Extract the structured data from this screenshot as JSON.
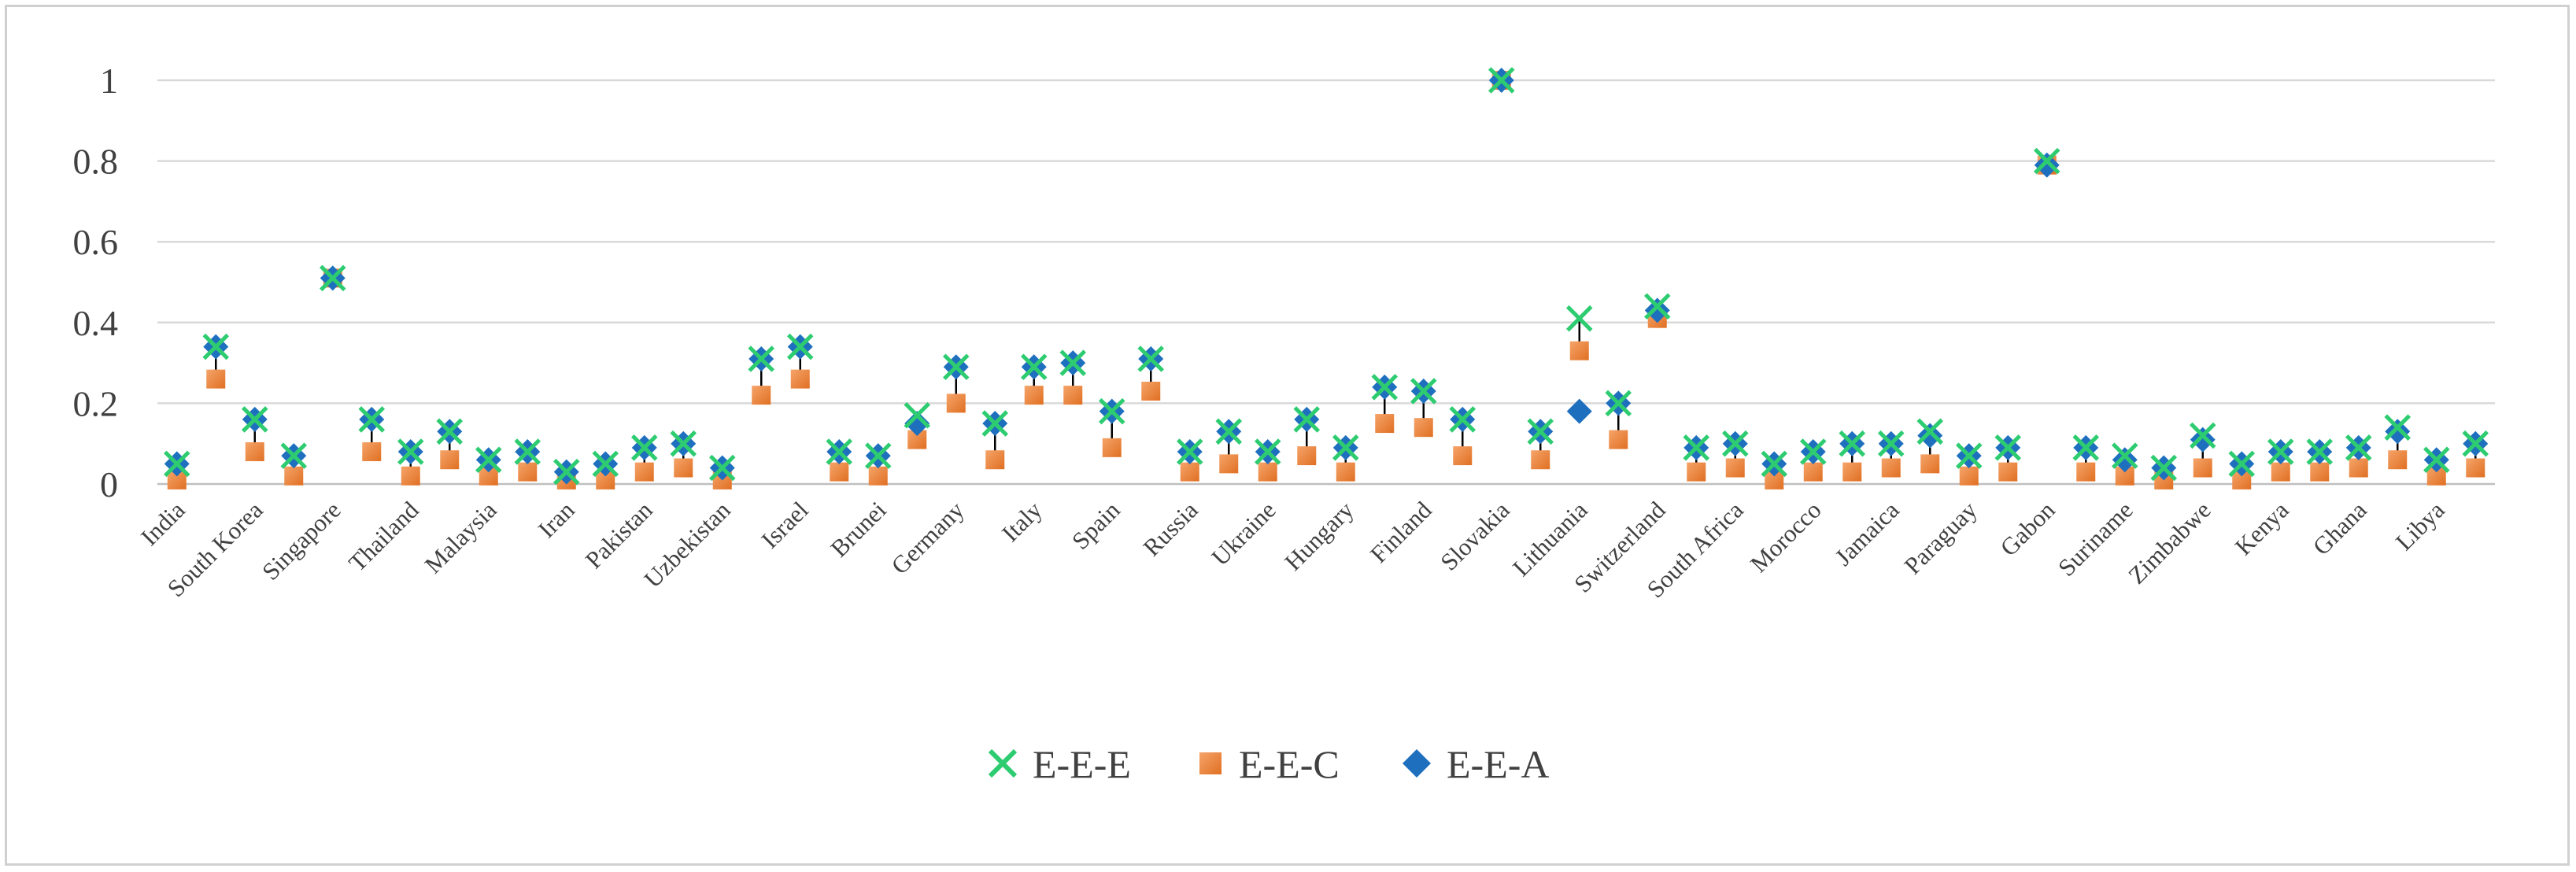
{
  "chart_data": {
    "type": "scatter",
    "title": "",
    "xlabel": "",
    "ylabel": "",
    "ylim": [
      0,
      1
    ],
    "yticks": [
      "0",
      "0.2",
      "0.4",
      "0.6",
      "0.8",
      "1"
    ],
    "grid": true,
    "legend_position": "bottom-center",
    "countries": [
      "India",
      "South Korea",
      "Singapore",
      "Thailand",
      "Malaysia",
      "Iran",
      "Pakistan",
      "Uzbekistan",
      "Israel",
      "Brunei",
      "Germany",
      "Italy",
      "Spain",
      "Russia",
      "Ukraine",
      "Hungary",
      "Finland",
      "Slovakia",
      "Lithuania",
      "Switzerland",
      "South Africa",
      "Morocco",
      "Jamaica",
      "Paraguay",
      "Gabon",
      "Suriname",
      "Zimbabwe",
      "Kenya",
      "Ghana",
      "Libya"
    ],
    "x_labels": [
      "India",
      "South Korea",
      "Singapore",
      "Thailand",
      "Malaysia",
      "Iran",
      "Pakistan",
      "Uzbekistan",
      "Israel",
      "Brunei",
      "Germany",
      "Italy",
      "Spain",
      "Russia",
      "Ukraine",
      "Hungary",
      "Finland",
      "Slovakia",
      "Lithuania",
      "Switzerland",
      "South Africa",
      "Morocco",
      "Jamaica",
      "Paraguay",
      "Gabon",
      "Suriname",
      "Zimbabwe",
      "Kenya",
      "Ghana",
      "Libya"
    ],
    "series": [
      {
        "name": "E-E-E",
        "marker": "x",
        "color": "#2ecc71",
        "values": [
          0.05,
          0.34,
          0.16,
          0.07,
          0.51,
          0.16,
          0.08,
          0.13,
          0.06,
          0.08,
          0.03,
          0.05,
          0.09,
          0.1,
          0.04,
          0.31,
          0.34,
          0.08,
          0.07,
          0.17,
          0.29,
          0.15,
          0.29,
          0.3,
          0.18,
          0.31,
          0.08,
          0.13,
          0.08,
          0.16,
          0.09,
          0.24,
          0.23,
          0.16,
          1.0,
          0.13,
          0.41,
          0.2,
          0.44,
          0.09,
          0.1,
          0.05,
          0.08,
          0.1,
          0.1,
          0.13,
          0.07,
          0.09,
          0.8,
          0.09,
          0.07,
          0.04,
          0.12,
          0.05,
          0.08,
          0.08,
          0.09,
          0.14,
          0.06,
          0.1
        ]
      },
      {
        "name": "E-E-C",
        "marker": "square",
        "color": "#ed7d31",
        "values": [
          0.01,
          0.26,
          0.08,
          0.02,
          0.51,
          0.08,
          0.02,
          0.06,
          0.02,
          0.03,
          0.01,
          0.01,
          0.03,
          0.04,
          0.01,
          0.22,
          0.26,
          0.03,
          0.02,
          0.11,
          0.2,
          0.06,
          0.22,
          0.22,
          0.09,
          0.23,
          0.03,
          0.05,
          0.03,
          0.07,
          0.03,
          0.15,
          0.14,
          0.07,
          1.0,
          0.06,
          0.33,
          0.11,
          0.41,
          0.03,
          0.04,
          0.01,
          0.03,
          0.03,
          0.04,
          0.05,
          0.02,
          0.03,
          0.79,
          0.03,
          0.02,
          0.01,
          0.04,
          0.01,
          0.03,
          0.03,
          0.04,
          0.06,
          0.02,
          0.04
        ]
      },
      {
        "name": "E-E-A",
        "marker": "diamond",
        "color": "#1f6fbf",
        "values": [
          0.05,
          0.34,
          0.16,
          0.07,
          0.51,
          0.16,
          0.08,
          0.13,
          0.06,
          0.08,
          0.03,
          0.05,
          0.09,
          0.1,
          0.04,
          0.31,
          0.34,
          0.08,
          0.07,
          0.15,
          0.29,
          0.15,
          0.29,
          0.3,
          0.18,
          0.31,
          0.08,
          0.13,
          0.08,
          0.16,
          0.09,
          0.24,
          0.23,
          0.16,
          1.0,
          0.13,
          0.18,
          0.2,
          0.43,
          0.09,
          0.1,
          0.05,
          0.08,
          0.1,
          0.1,
          0.12,
          0.07,
          0.09,
          0.79,
          0.09,
          0.06,
          0.04,
          0.11,
          0.05,
          0.08,
          0.08,
          0.09,
          0.13,
          0.06,
          0.1
        ]
      }
    ]
  }
}
